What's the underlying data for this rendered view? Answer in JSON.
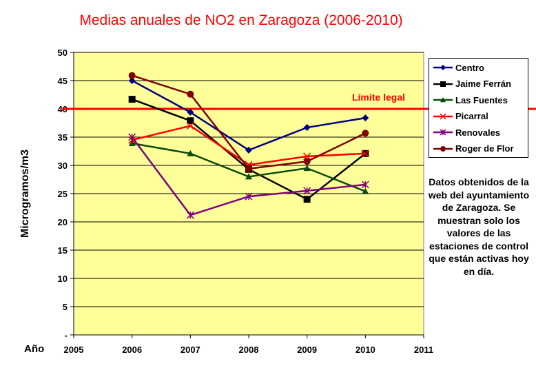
{
  "chart_data": {
    "type": "line",
    "title": "Medias anuales de NO2 en Zaragoza (2006-2010)",
    "xlabel": "Año",
    "ylabel": "Microgramos/m3",
    "xlim": [
      2005,
      2011
    ],
    "ylim": [
      0,
      50
    ],
    "x_ticks": [
      "2005",
      "2006",
      "2007",
      "2008",
      "2009",
      "2010",
      "2011"
    ],
    "y_ticks": [
      "-",
      "5",
      "10",
      "15",
      "20",
      "25",
      "30",
      "35",
      "40",
      "45",
      "50"
    ],
    "grid": true,
    "legend_position": "right",
    "x": [
      2006,
      2007,
      2008,
      2009,
      2010
    ],
    "series": [
      {
        "name": "Centro",
        "color": "#00007f",
        "marker": "diamond",
        "values": [
          45.0,
          39.4,
          32.7,
          36.7,
          38.4
        ]
      },
      {
        "name": "Jaime Ferrán",
        "color": "#000000",
        "marker": "square",
        "values": [
          41.7,
          37.9,
          29.3,
          24.0,
          32.1
        ]
      },
      {
        "name": "Las Fuentes",
        "color": "#0a4a0a",
        "marker": "triangle",
        "values": [
          33.9,
          32.1,
          28.0,
          29.5,
          25.4
        ]
      },
      {
        "name": "Picarral",
        "color": "#ff0000",
        "marker": "x",
        "values": [
          34.5,
          37.0,
          30.1,
          31.6,
          32.1
        ]
      },
      {
        "name": "Renovales",
        "color": "#800080",
        "marker": "star",
        "values": [
          35.0,
          21.2,
          24.5,
          25.5,
          26.6
        ]
      },
      {
        "name": "Roger de Flor",
        "color": "#800000",
        "marker": "circle",
        "values": [
          45.9,
          42.6,
          29.4,
          30.7,
          35.7
        ]
      }
    ],
    "reference_line": {
      "label": "Límite legal",
      "value": 40,
      "color": "#ff0000"
    },
    "plot_background": "#ffff99",
    "annotation": "Datos obtenidos de la web del ayuntamiento de Zaragoza. Se muestran solo los valores de las estaciones de control que están activas hoy en día."
  }
}
